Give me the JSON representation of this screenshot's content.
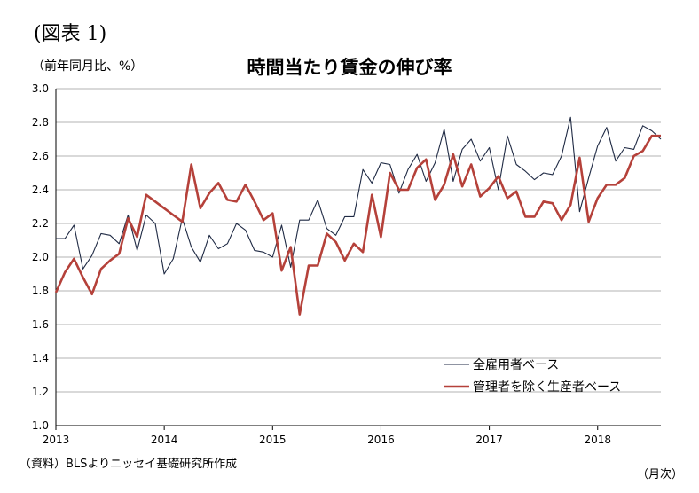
{
  "header": {
    "figure_label": "(図表 1)",
    "unit_label": "（前年同月比、%）"
  },
  "footer": {
    "source": "（資料）BLSよりニッセイ基礎研究所作成",
    "x_unit": "（月次）"
  },
  "chart_data": {
    "type": "line",
    "title": "時間当たり賃金の伸び率",
    "xlabel": "",
    "ylabel": "",
    "ylim": [
      1.0,
      3.0
    ],
    "yticks": [
      1.0,
      1.2,
      1.4,
      1.6,
      1.8,
      2.0,
      2.2,
      2.4,
      2.6,
      2.8,
      3.0
    ],
    "xticks": [
      "2013",
      "2014",
      "2015",
      "2016",
      "2017",
      "2018"
    ],
    "x_start": "2013-01",
    "x_end": "2018-07",
    "grid": true,
    "legend": "bottom-right",
    "series": [
      {
        "name": "全雇用者ベース",
        "color": "#1f2a44",
        "values": [
          2.11,
          2.11,
          2.19,
          1.93,
          2.01,
          2.14,
          2.13,
          2.08,
          2.25,
          2.04,
          2.25,
          2.2,
          1.9,
          1.99,
          2.23,
          2.06,
          1.97,
          2.13,
          2.05,
          2.08,
          2.2,
          2.16,
          2.04,
          2.03,
          2.0,
          2.19,
          1.94,
          2.22,
          2.22,
          2.34,
          2.17,
          2.13,
          2.24,
          2.24,
          2.52,
          2.44,
          2.56,
          2.55,
          2.38,
          2.52,
          2.61,
          2.45,
          2.56,
          2.76,
          2.45,
          2.64,
          2.7,
          2.57,
          2.65,
          2.4,
          2.72,
          2.55,
          2.51,
          2.46,
          2.5,
          2.49,
          2.6,
          2.83,
          2.27,
          2.47,
          2.66,
          2.77,
          2.57,
          2.65,
          2.64,
          2.78,
          2.75,
          2.7
        ]
      },
      {
        "name": "管理者を除く生産者ベース",
        "color": "#b5413a",
        "values": [
          1.79,
          1.91,
          1.99,
          1.88,
          1.78,
          1.93,
          1.98,
          2.02,
          2.23,
          2.12,
          2.37,
          2.33,
          2.29,
          2.25,
          2.21,
          2.55,
          2.29,
          2.38,
          2.44,
          2.34,
          2.33,
          2.43,
          2.33,
          2.22,
          2.26,
          1.92,
          2.06,
          1.66,
          1.95,
          1.95,
          2.14,
          2.09,
          1.98,
          2.08,
          2.03,
          2.37,
          2.12,
          2.5,
          2.4,
          2.4,
          2.53,
          2.58,
          2.34,
          2.43,
          2.61,
          2.42,
          2.55,
          2.36,
          2.41,
          2.48,
          2.35,
          2.39,
          2.24,
          2.24,
          2.33,
          2.32,
          2.22,
          2.31,
          2.59,
          2.21,
          2.35,
          2.43,
          2.43,
          2.47,
          2.6,
          2.63,
          2.72,
          2.72
        ]
      }
    ]
  }
}
